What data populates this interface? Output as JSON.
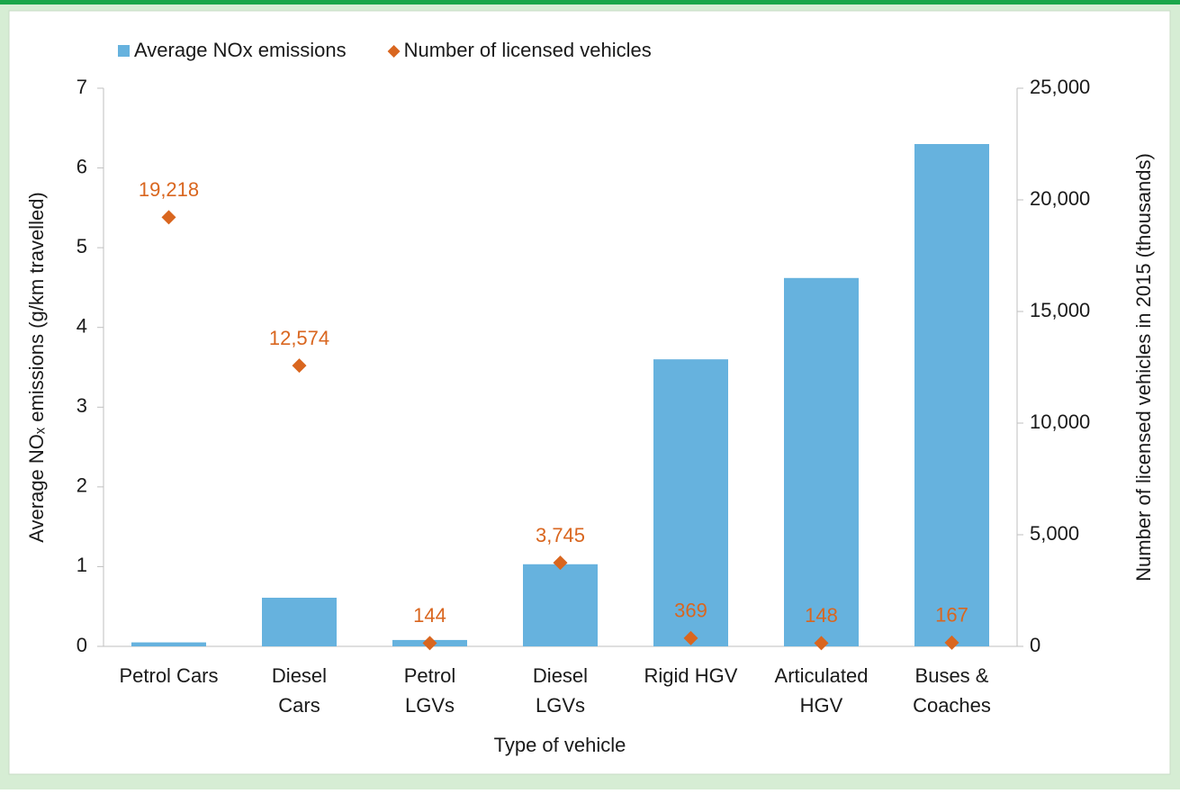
{
  "chart_data": {
    "type": "bar",
    "categories": [
      [
        "Petrol Cars"
      ],
      [
        "Diesel",
        "Cars"
      ],
      [
        "Petrol",
        "LGVs"
      ],
      [
        "Diesel",
        "LGVs"
      ],
      [
        "Rigid HGV"
      ],
      [
        "Articulated",
        "HGV"
      ],
      [
        "Buses &",
        "Coaches"
      ]
    ],
    "xlabel": "Type of vehicle",
    "ylabel": "Average NOₓ emissions (g/km travelled)",
    "y2label": "Number of licensed vehicles in 2015 (thousands)",
    "ylim": [
      0,
      7
    ],
    "yticks": [
      0,
      1,
      2,
      3,
      4,
      5,
      6,
      7
    ],
    "y2lim": [
      0,
      25000
    ],
    "y2ticks": [
      0,
      {
        "value": 5000,
        "label": "5,000"
      },
      {
        "value": 10000,
        "label": "10,000"
      },
      {
        "value": 15000,
        "label": "15,000"
      },
      {
        "value": 20000,
        "label": "20,000"
      },
      {
        "value": 25000,
        "label": "25,000"
      }
    ],
    "legend": "top-left",
    "series": [
      {
        "name": "Average NOx emissions",
        "type": "bar",
        "color": "#66b2de",
        "values": [
          0.05,
          0.61,
          0.08,
          1.03,
          3.6,
          4.62,
          6.3
        ]
      },
      {
        "name": "Number of licensed vehicles",
        "type": "scatter",
        "axis": "y2",
        "color": "#d9661f",
        "values": [
          19218,
          12574,
          144,
          3745,
          369,
          148,
          167
        ],
        "value_labels": [
          "19,218",
          "12,574",
          "144",
          "3,745",
          "369",
          "148",
          "167"
        ]
      }
    ]
  }
}
